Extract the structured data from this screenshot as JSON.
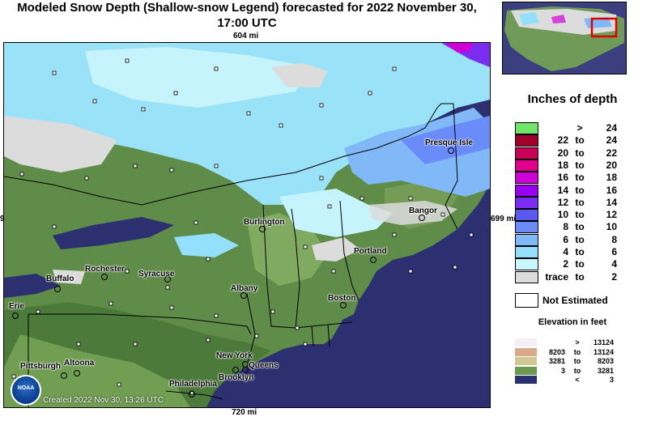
{
  "title": "Modeled Snow Depth (Shallow-snow Legend) forecasted for 2022 November 30, 17:00 UTC",
  "distances": {
    "top": "604 mi",
    "bottom": "720 mi",
    "right": "699 mi",
    "left": "9"
  },
  "created": "Created 2022 Nov 30, 13:26 UTC",
  "logo_text": "NOAA",
  "cities": [
    {
      "name": "Presque Isle"
    },
    {
      "name": "Bangor"
    },
    {
      "name": "Burlington"
    },
    {
      "name": "Portland"
    },
    {
      "name": "Rochester"
    },
    {
      "name": "Syracuse"
    },
    {
      "name": "Buffalo"
    },
    {
      "name": "Albany"
    },
    {
      "name": "Boston"
    },
    {
      "name": "Erie"
    },
    {
      "name": "Pittsburgh"
    },
    {
      "name": "Altoona"
    },
    {
      "name": "New York"
    },
    {
      "name": "Queens"
    },
    {
      "name": "Brooklyn"
    },
    {
      "name": "Philadelphia"
    }
  ],
  "legend": {
    "title": "Inches of depth",
    "rows": [
      {
        "color": "#6ee66a",
        "lo": "",
        "to": ">",
        "hi": "24"
      },
      {
        "color": "#a0002a",
        "lo": "22",
        "to": "to",
        "hi": "24"
      },
      {
        "color": "#c80056",
        "lo": "20",
        "to": "to",
        "hi": "22"
      },
      {
        "color": "#e0008c",
        "lo": "18",
        "to": "to",
        "hi": "20"
      },
      {
        "color": "#d000d8",
        "lo": "16",
        "to": "to",
        "hi": "18"
      },
      {
        "color": "#9a00f0",
        "lo": "14",
        "to": "to",
        "hi": "16"
      },
      {
        "color": "#7a2cf0",
        "lo": "12",
        "to": "to",
        "hi": "14"
      },
      {
        "color": "#5a5af0",
        "lo": "10",
        "to": "to",
        "hi": "12"
      },
      {
        "color": "#6a8cf8",
        "lo": "8",
        "to": "to",
        "hi": "10"
      },
      {
        "color": "#80b8f8",
        "lo": "6",
        "to": "to",
        "hi": "8"
      },
      {
        "color": "#92e0fc",
        "lo": "4",
        "to": "to",
        "hi": "6"
      },
      {
        "color": "#c8f8fc",
        "lo": "2",
        "to": "to",
        "hi": "4"
      },
      {
        "color": "#dcdcdc",
        "lo": "trace",
        "to": "to",
        "hi": "2"
      }
    ],
    "not_estimated": "Not Estimated"
  },
  "elevation": {
    "title": "Elevation in feet",
    "rows": [
      {
        "color": "#f4eef8",
        "lo": "",
        "to": ">",
        "hi": "13124"
      },
      {
        "color": "#d8a888",
        "lo": "8203",
        "to": "to",
        "hi": "13124"
      },
      {
        "color": "#cfc890",
        "lo": "3281",
        "to": "to",
        "hi": "8203"
      },
      {
        "color": "#6a9a50",
        "lo": "3",
        "to": "to",
        "hi": "3281"
      },
      {
        "color": "#2c3070",
        "lo": "",
        "to": "<",
        "hi": "3"
      }
    ]
  }
}
